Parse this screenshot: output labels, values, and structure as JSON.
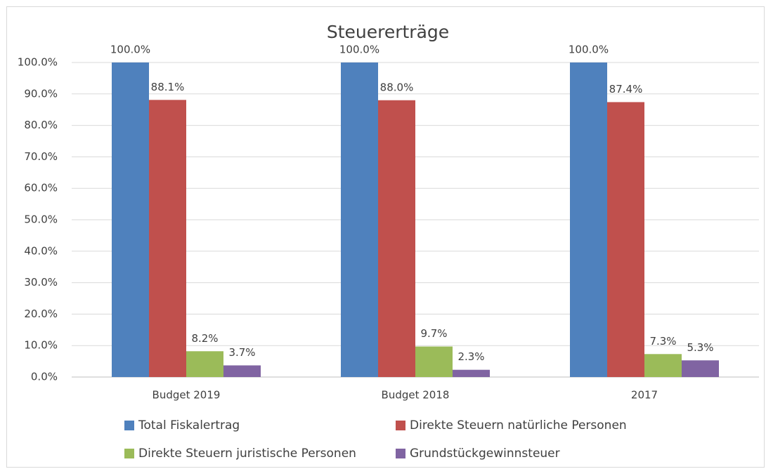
{
  "chart_data": {
    "type": "bar",
    "title": "Steuererträge",
    "categories": [
      "Budget 2019",
      "Budget 2018",
      "2017"
    ],
    "series": [
      {
        "name": "Total Fiskalertrag",
        "color": "#4f81bd",
        "values": [
          100,
          100,
          100
        ],
        "value_labels": [
          "100.0%",
          "100.0%",
          "100.0%"
        ]
      },
      {
        "name": "Direkte Steuern natürliche Personen",
        "color": "#c0504d",
        "values": [
          88.1,
          88.0,
          87.4
        ],
        "value_labels": [
          "88.1%",
          "88.0%",
          "87.4%"
        ]
      },
      {
        "name": "Direkte Steuern juristische Personen",
        "color": "#9bbb59",
        "values": [
          8.2,
          9.7,
          7.3
        ],
        "value_labels": [
          "8.2%",
          "9.7%",
          "7.3%"
        ]
      },
      {
        "name": "Grundstückgewinnsteuer",
        "color": "#8064a2",
        "values": [
          3.7,
          2.3,
          5.3
        ],
        "value_labels": [
          "3.7%",
          "2.3%",
          "5.3%"
        ]
      }
    ],
    "ylim": [
      0,
      100
    ],
    "yticks": [
      {
        "value": 0,
        "label": "0.0%"
      },
      {
        "value": 10,
        "label": "10.0%"
      },
      {
        "value": 20,
        "label": "20.0%"
      },
      {
        "value": 30,
        "label": "30.0%"
      },
      {
        "value": 40,
        "label": "40.0%"
      },
      {
        "value": 50,
        "label": "50.0%"
      },
      {
        "value": 60,
        "label": "60.0%"
      },
      {
        "value": 70,
        "label": "70.0%"
      },
      {
        "value": 80,
        "label": "80.0%"
      },
      {
        "value": 90,
        "label": "90.0%"
      },
      {
        "value": 100,
        "label": "100.0%"
      }
    ],
    "grid": true,
    "legend": "bottom"
  }
}
